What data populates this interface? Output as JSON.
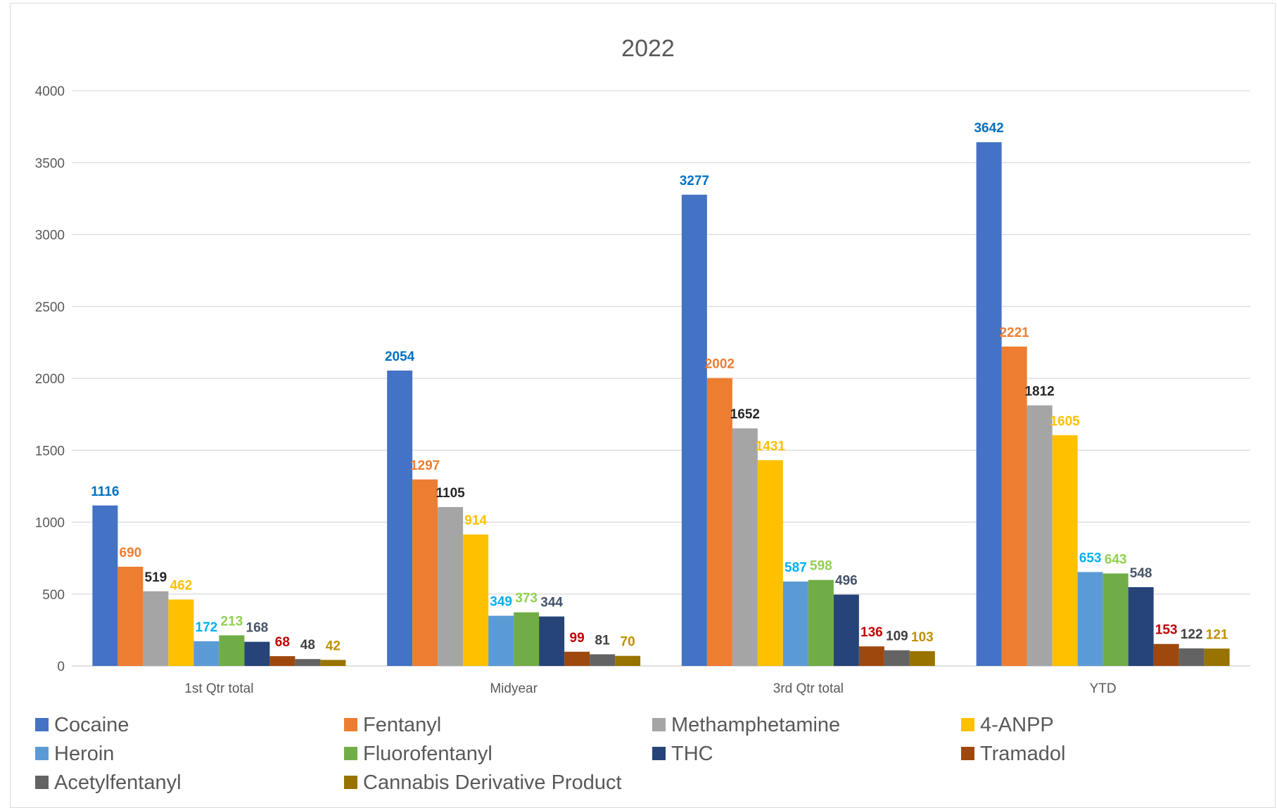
{
  "chart_data": {
    "type": "bar",
    "title": "2022",
    "xlabel": "",
    "ylabel": "",
    "ylim": [
      0,
      4000
    ],
    "yticks": [
      0,
      500,
      1000,
      1500,
      2000,
      2500,
      3000,
      3500,
      4000
    ],
    "grid": true,
    "legend_position": "bottom",
    "categories": [
      "1st Qtr total",
      "Midyear",
      "3rd Qtr total",
      "YTD"
    ],
    "series": [
      {
        "name": "Cocaine",
        "color": "#4472C4",
        "label_color": "#0070C0",
        "values": [
          1116,
          2054,
          3277,
          3642
        ]
      },
      {
        "name": "Fentanyl",
        "color": "#ED7D31",
        "label_color": "#ED7D31",
        "values": [
          690,
          1297,
          2002,
          2221
        ]
      },
      {
        "name": "Methamphetamine",
        "color": "#A5A5A5",
        "label_color": "#262626",
        "values": [
          519,
          1105,
          1652,
          1812
        ]
      },
      {
        "name": "4-ANPP",
        "color": "#FFC000",
        "label_color": "#FFC000",
        "values": [
          462,
          914,
          1431,
          1605
        ]
      },
      {
        "name": "Heroin",
        "color": "#5B9BD5",
        "label_color": "#00B0F0",
        "values": [
          172,
          349,
          587,
          653
        ]
      },
      {
        "name": "Fluorofentanyl",
        "color": "#70AD47",
        "label_color": "#92D050",
        "values": [
          213,
          373,
          598,
          643
        ]
      },
      {
        "name": "THC",
        "color": "#264478",
        "label_color": "#44546A",
        "values": [
          168,
          344,
          496,
          548
        ]
      },
      {
        "name": "Tramadol",
        "color": "#9E480E",
        "label_color": "#C00000",
        "values": [
          68,
          99,
          136,
          153
        ]
      },
      {
        "name": "Acetylfentanyl",
        "color": "#636363",
        "label_color": "#404040",
        "values": [
          48,
          81,
          109,
          122
        ]
      },
      {
        "name": "Cannabis Derivative Product",
        "color": "#997300",
        "label_color": "#BF9000",
        "values": [
          42,
          70,
          103,
          121
        ]
      }
    ]
  }
}
